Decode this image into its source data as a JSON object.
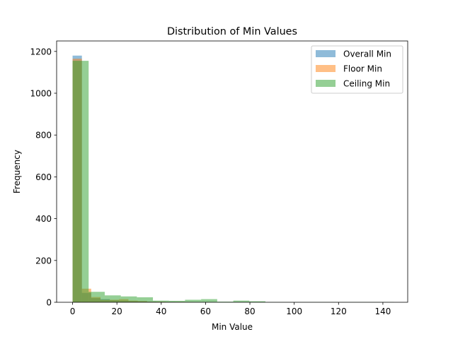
{
  "chart_data": {
    "type": "bar",
    "subtype": "overlaid-histogram",
    "title": "Distribution of Min Values",
    "xlabel": "Min Value",
    "ylabel": "Frequency",
    "xlim": [
      -7.2,
      151.2
    ],
    "ylim": [
      0,
      1250
    ],
    "xticks": [
      0,
      20,
      40,
      60,
      80,
      100,
      120,
      140
    ],
    "yticks": [
      0,
      200,
      400,
      600,
      800,
      1000,
      1200
    ],
    "grid": false,
    "legend": "top-right",
    "bar_alpha": 0.5,
    "series": [
      {
        "name": "Overall Min",
        "color": "#1f77b4",
        "bins": [
          {
            "x0": 0.0,
            "x1": 4.2,
            "count": 1180
          },
          {
            "x0": 4.2,
            "x1": 8.4,
            "count": 45
          },
          {
            "x0": 8.4,
            "x1": 12.6,
            "count": 20
          },
          {
            "x0": 12.6,
            "x1": 16.8,
            "count": 15
          },
          {
            "x0": 16.8,
            "x1": 21.0,
            "count": 10
          },
          {
            "x0": 21.0,
            "x1": 25.2,
            "count": 8
          },
          {
            "x0": 25.2,
            "x1": 29.4,
            "count": 6
          },
          {
            "x0": 29.4,
            "x1": 33.6,
            "count": 5
          },
          {
            "x0": 33.6,
            "x1": 37.8,
            "count": 3
          },
          {
            "x0": 37.8,
            "x1": 42.0,
            "count": 2
          },
          {
            "x0": 42.0,
            "x1": 46.2,
            "count": 2
          },
          {
            "x0": 46.2,
            "x1": 50.4,
            "count": 1
          }
        ]
      },
      {
        "name": "Floor Min",
        "color": "#ff7f0e",
        "bins": [
          {
            "x0": 0.0,
            "x1": 4.2,
            "count": 1165
          },
          {
            "x0": 4.2,
            "x1": 8.4,
            "count": 65
          },
          {
            "x0": 8.4,
            "x1": 12.6,
            "count": 25
          },
          {
            "x0": 12.6,
            "x1": 16.8,
            "count": 12
          },
          {
            "x0": 16.8,
            "x1": 21.0,
            "count": 12
          },
          {
            "x0": 21.0,
            "x1": 25.2,
            "count": 15
          },
          {
            "x0": 25.2,
            "x1": 29.4,
            "count": 8
          },
          {
            "x0": 29.4,
            "x1": 33.6,
            "count": 6
          },
          {
            "x0": 33.6,
            "x1": 37.8,
            "count": 3
          },
          {
            "x0": 37.8,
            "x1": 42.0,
            "count": 3
          },
          {
            "x0": 42.0,
            "x1": 46.2,
            "count": 2
          },
          {
            "x0": 46.2,
            "x1": 50.4,
            "count": 2
          },
          {
            "x0": 50.4,
            "x1": 54.6,
            "count": 1
          }
        ]
      },
      {
        "name": "Ceiling Min",
        "color": "#2ca02c",
        "bins": [
          {
            "x0": 0.0,
            "x1": 7.25,
            "count": 1155
          },
          {
            "x0": 7.25,
            "x1": 14.5,
            "count": 50
          },
          {
            "x0": 14.5,
            "x1": 21.75,
            "count": 33
          },
          {
            "x0": 21.75,
            "x1": 29.0,
            "count": 28
          },
          {
            "x0": 29.0,
            "x1": 36.25,
            "count": 24
          },
          {
            "x0": 36.25,
            "x1": 43.5,
            "count": 8
          },
          {
            "x0": 43.5,
            "x1": 50.75,
            "count": 7
          },
          {
            "x0": 50.75,
            "x1": 58.0,
            "count": 12
          },
          {
            "x0": 58.0,
            "x1": 65.25,
            "count": 15
          },
          {
            "x0": 65.25,
            "x1": 72.5,
            "count": 3
          },
          {
            "x0": 72.5,
            "x1": 79.75,
            "count": 8
          },
          {
            "x0": 79.75,
            "x1": 87.0,
            "count": 5
          },
          {
            "x0": 87.0,
            "x1": 94.25,
            "count": 1
          },
          {
            "x0": 94.25,
            "x1": 101.5,
            "count": 1
          },
          {
            "x0": 101.5,
            "x1": 108.75,
            "count": 1
          },
          {
            "x0": 108.75,
            "x1": 116.0,
            "count": 1
          },
          {
            "x0": 116.0,
            "x1": 123.25,
            "count": 1
          },
          {
            "x0": 123.25,
            "x1": 130.5,
            "count": 1
          },
          {
            "x0": 130.5,
            "x1": 137.75,
            "count": 1
          },
          {
            "x0": 137.75,
            "x1": 145.0,
            "count": 1
          }
        ]
      }
    ]
  }
}
